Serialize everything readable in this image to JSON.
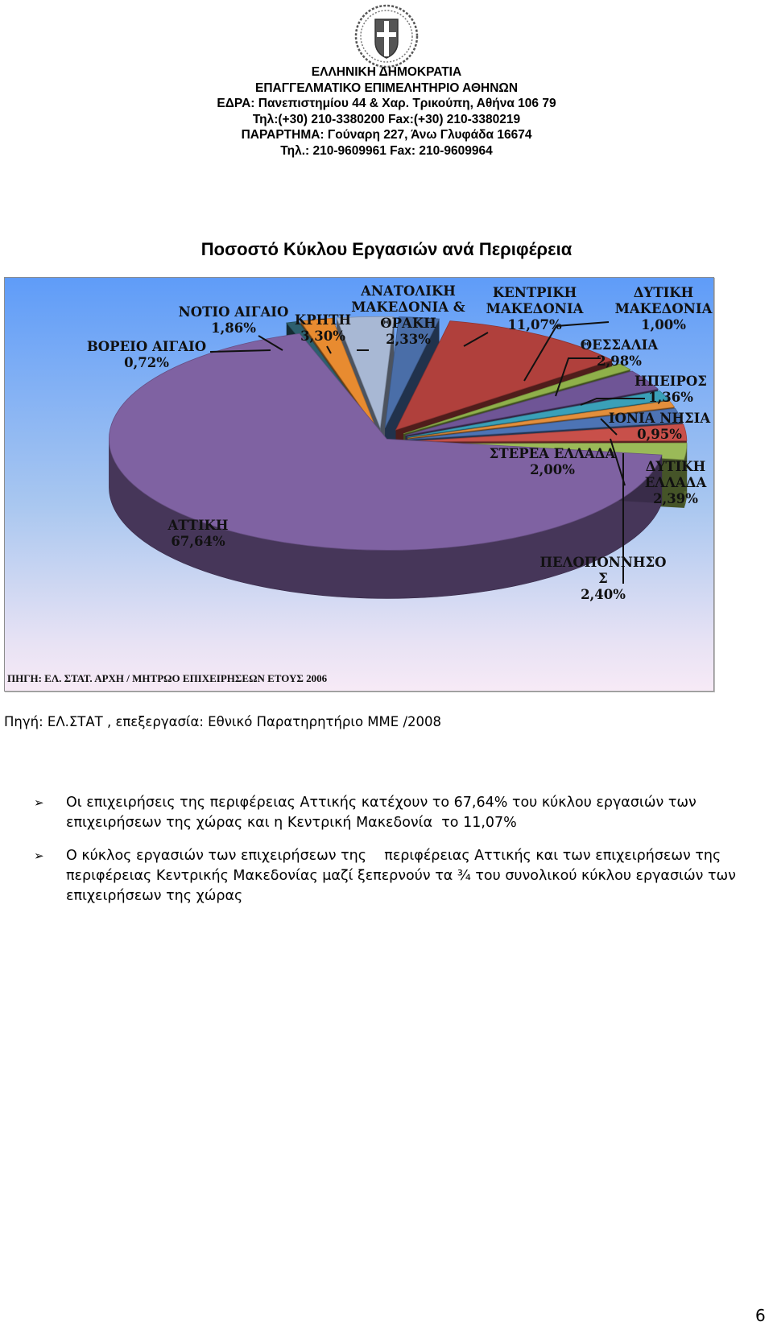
{
  "letterhead": {
    "line1": "ΕΛΛΗΝΙΚΗ ΔΗΜΟΚΡΑΤΙΑ",
    "line2": "ΕΠΑΓΓΕΛΜΑΤΙΚΟ ΕΠΙΜΕΛΗΤΗΡΙΟ ΑΘΗΝΩΝ",
    "line3": "ΕΔΡΑ: Πανεπιστημίου 44 & Χαρ. Τρικούπη, Αθήνα 106 79",
    "line4": "Τηλ:(+30) 210-3380200 Fax:(+30) 210-3380219",
    "line5": "ΠΑΡΑΡΤΗΜΑ: Γούναρη 227, Άνω Γλυφάδα 16674",
    "line6": "Τηλ.: 210-9609961 Fax: 210-9609964"
  },
  "chart_title": "Ποσοστό Κύκλου Εργασιών ανά Περιφέρεια",
  "chart_data": {
    "type": "pie",
    "title": "Ποσοστό Κύκλου Εργασιών ανά Περιφέρεια",
    "source": "ΠΗΓΗ: ΕΛ. ΣΤΑΤ. ΑΡΧΗ / ΜΗΤΡΩΟ ΕΠΙΧΕΙΡΗΣΕΩΝ ΕΤΟΥΣ 2006",
    "slices": [
      {
        "name": "ΑΝΑΤΟΛΙΚΗ ΜΑΚΕΔΟΝΙΑ & ΘΡΑΚΗ",
        "value": 2.33,
        "label": "2,33%",
        "color": "#4a6ea8"
      },
      {
        "name": "ΚΕΝΤΡΙΚΗ ΜΑΚΕΔΟΝΙΑ",
        "value": 11.07,
        "label": "11,07%",
        "color": "#b0403c"
      },
      {
        "name": "ΔΥΤΙΚΗ ΜΑΚΕΔΟΝΙΑ",
        "value": 1.0,
        "label": "1,00%",
        "color": "#8fb04a"
      },
      {
        "name": "ΘΕΣΣΑΛΙΑ",
        "value": 2.98,
        "label": "2,98%",
        "color": "#6f5596"
      },
      {
        "name": "ΗΠΕΙΡΟΣ",
        "value": 1.36,
        "label": "1,36%",
        "color": "#3aa0b8"
      },
      {
        "name": "ΙΟΝΙΑ ΝΗΣΙΑ",
        "value": 0.95,
        "label": "0,95%",
        "color": "#e48f3c"
      },
      {
        "name": "ΣΤΕΡΕΑ ΕΛΛΑΔΑ",
        "value": 2.0,
        "label": "2,00%",
        "color": "#4d74b5"
      },
      {
        "name": "ΔΥΤΙΚΗ ΕΛΛΑΔΑ",
        "value": 2.39,
        "label": "2,39%",
        "color": "#c8504a"
      },
      {
        "name": "ΠΕΛΟΠΟΝΝΗΣΟΣ",
        "value": 2.4,
        "label": "2,40%",
        "color": "#9aba58"
      },
      {
        "name": "ΑΤΤΙΚΗ",
        "value": 67.64,
        "label": "67,64%",
        "color": "#7f62a2"
      },
      {
        "name": "ΒΟΡΕΙΟ ΑΙΓΑΙΟ",
        "value": 0.72,
        "label": "0,72%",
        "color": "#2d5f6e"
      },
      {
        "name": "ΝΟΤΙΟ ΑΙΓΑΙΟ",
        "value": 1.86,
        "label": "1,86%",
        "color": "#e88b30"
      },
      {
        "name": "ΚΡΗΤΗ",
        "value": 3.3,
        "label": "3,30%",
        "color": "#a8b8d4"
      }
    ],
    "labels": {
      "anatoliki": {
        "l1": "ΑΝΑΤΟΛΙΚΗ",
        "l2": "ΜΑΚΕΔΟΝΙΑ &",
        "l3": "ΘΡΑΚΗ",
        "l4": "2,33%"
      },
      "kentriki": {
        "l1": "ΚΕΝΤΡΙΚΗ",
        "l2": "ΜΑΚΕΔΟΝΙΑ",
        "l3": "11,07%"
      },
      "dytiki_mak": {
        "l1": "ΔΥΤΙΚΗ",
        "l2": "ΜΑΚΕΔΟΝΙΑ",
        "l3": "1,00%"
      },
      "thessalia": {
        "l1": "ΘΕΣΣΑΛΙΑ",
        "l2": "2,98%"
      },
      "ipeiros": {
        "l1": "ΗΠΕΙΡΟΣ",
        "l2": "1,36%"
      },
      "ionia": {
        "l1": "ΙΟΝΙΑ ΝΗΣΙΑ",
        "l2": "0,95%"
      },
      "sterea": {
        "l1": "ΣΤΕΡΕΑ ΕΛΛΑΔΑ",
        "l2": "2,00%"
      },
      "dytiki_ell": {
        "l1": "ΔΥΤΙΚΗ",
        "l2": "ΕΛΛΑΔΑ",
        "l3": "2,39%"
      },
      "peloponnisos": {
        "l1": "ΠΕΛΟΠΟΝΝΗΣΟ",
        "l2": "Σ",
        "l3": "2,40%"
      },
      "attiki": {
        "l1": "ΑΤΤΙΚΗ",
        "l2": "67,64%"
      },
      "voreio": {
        "l1": "ΒΟΡΕΙΟ ΑΙΓΑΙΟ",
        "l2": "0,72%"
      },
      "notio": {
        "l1": "ΝΟΤΙΟ ΑΙΓΑΙΟ",
        "l2": "1,86%"
      },
      "kriti": {
        "l1": "ΚΡΗΤΗ",
        "l2": "3,30%"
      }
    }
  },
  "source_line": "Πηγή: ΕΛ.ΣΤΑΤ , επεξεργασία: Εθνικό Παρατηρητήριο ΜΜΕ /2008",
  "bullets": [
    {
      "mark": "➢",
      "text": "Οι επιχειρήσεις της περιφέρειας Αττικής κατέχουν το 67,64% του κύκλου εργασιών των\nεπιχειρήσεων της χώρας και η Κεντρική Μακεδονία  το 11,07%"
    },
    {
      "mark": "➢",
      "text": "Ο κύκλος εργασιών των επιχειρήσεων της    περιφέρειας Αττικής και των επιχειρήσεων της\nπεριφέρειας Κεντρικής Μακεδονίας μαζί ξεπερνούν τα ¾ του συνολικού κύκλου εργασιών των\nεπιχειρήσεων της χώρας"
    }
  ],
  "page_number": "6"
}
